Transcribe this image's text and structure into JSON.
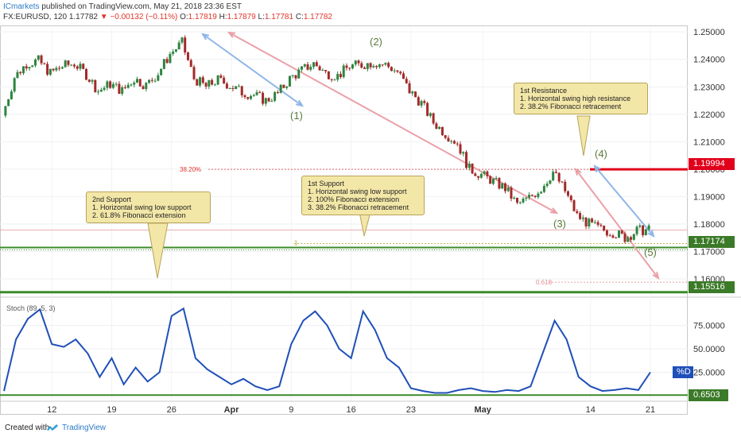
{
  "header": {
    "brand": "ICmarkets",
    "published": " published on TradingView.com, May 21, 2018 23:36 EST",
    "symbol": "FX:EURUSD, 120",
    "last": "1.17782",
    "change": "▼ −0.00132 (−0.11%)",
    "ohlc_o_label": "O:",
    "ohlc_o": "1.17819",
    "ohlc_h_label": "H:",
    "ohlc_h": "1.17879",
    "ohlc_l_label": "L:",
    "ohlc_l": "1.17781",
    "ohlc_c_label": "C:",
    "ohlc_c": "1.17782"
  },
  "footer": {
    "created": "Created with",
    "brand": "TradingView"
  },
  "colors": {
    "up": "#2e8540",
    "down": "#a32a2a",
    "resistance": "#e0001b",
    "support": "#3b8b2a",
    "stoch": "#1f4fb8",
    "arrow_blue": "#8fb6e8",
    "arrow_pink": "#eaa0a8"
  },
  "callouts": {
    "second_support": "2nd Support\n1. Horizontal swing low support\n2. 61.8% Fibonacci extension",
    "first_support": "1st Support\n1. Horizontal swing low support\n2. 100% Fibonacci extension\n3. 38.2% Fibonacci retracement",
    "first_resistance": "1st Resistance\n1. Horizontal swing high resistance\n2. 38.2% Fibonacci retracement"
  },
  "chart_data": [
    {
      "type": "line",
      "title": "FX:EURUSD, 120",
      "y_ticks": [
        "1.25000",
        "1.24000",
        "1.23000",
        "1.22000",
        "1.21000",
        "1.20000",
        "1.19000",
        "1.18000",
        "1.17000",
        "1.16000"
      ],
      "ylim": [
        1.1545,
        1.2515
      ],
      "x_ticks": [
        "12",
        "19",
        "26",
        "Apr",
        "9",
        "16",
        "23",
        "May",
        "14",
        "21"
      ],
      "x": [
        "Mar 6",
        "Mar 7",
        "Mar 8",
        "Mar 9",
        "Mar 12",
        "Mar 13",
        "Mar 14",
        "Mar 15",
        "Mar 16",
        "Mar 19",
        "Mar 20",
        "Mar 21",
        "Mar 22",
        "Mar 23",
        "Mar 26",
        "Mar 27",
        "Mar 28",
        "Mar 29",
        "Mar 30",
        "Apr 2",
        "Apr 3",
        "Apr 4",
        "Apr 5",
        "Apr 6",
        "Apr 9",
        "Apr 10",
        "Apr 11",
        "Apr 12",
        "Apr 13",
        "Apr 16",
        "Apr 17",
        "Apr 18",
        "Apr 19",
        "Apr 20",
        "Apr 23",
        "Apr 24",
        "Apr 25",
        "Apr 26",
        "Apr 27",
        "Apr 30",
        "May 1",
        "May 2",
        "May 3",
        "May 4",
        "May 7",
        "May 8",
        "May 9",
        "May 10",
        "May 11",
        "May 14",
        "May 15",
        "May 16",
        "May 17",
        "May 18",
        "May 21"
      ],
      "series": [
        {
          "name": "",
          "values": [
            1.2195,
            1.2335,
            1.2385,
            1.2395,
            1.235,
            1.2375,
            1.2385,
            1.2345,
            1.2285,
            1.231,
            1.2285,
            1.233,
            1.2305,
            1.235,
            1.242,
            1.246,
            1.233,
            1.23,
            1.2325,
            1.2305,
            1.228,
            1.227,
            1.225,
            1.2275,
            1.233,
            1.236,
            1.2385,
            1.235,
            1.234,
            1.2375,
            1.238,
            1.239,
            1.238,
            1.2355,
            1.2285,
            1.224,
            1.217,
            1.213,
            1.2095,
            1.2,
            1.198,
            1.1955,
            1.193,
            1.187,
            1.1895,
            1.193,
            1.199,
            1.192,
            1.183,
            1.18,
            1.178,
            1.177,
            1.175,
            1.1775,
            1.1778
          ]
        }
      ],
      "wave_labels": [
        "(1)",
        "(2)",
        "(3)",
        "(4)",
        "(5)"
      ],
      "levels": {
        "resistance": {
          "value": 1.19994,
          "label": "1.19994"
        },
        "support1": {
          "value": 1.17174,
          "label": "1.17174"
        },
        "support2": {
          "value": 1.15516,
          "label": "1.15516"
        },
        "current": {
          "value": 1.17782
        }
      },
      "fib_labels": {
        "retrace": "38.20%",
        "ext_100": "1",
        "ext_618": "0.618"
      },
      "ext_618_value": 1.1588
    },
    {
      "type": "line",
      "title": "Stoch (89, 5, 3)",
      "y_ticks": [
        "75.0000",
        "50.0000",
        "25.0000"
      ],
      "ylim": [
        0,
        100
      ],
      "x": [
        "Mar 6",
        "Mar 7",
        "Mar 8",
        "Mar 9",
        "Mar 12",
        "Mar 13",
        "Mar 14",
        "Mar 15",
        "Mar 16",
        "Mar 19",
        "Mar 20",
        "Mar 21",
        "Mar 22",
        "Mar 23",
        "Mar 26",
        "Mar 27",
        "Mar 28",
        "Mar 29",
        "Mar 30",
        "Apr 2",
        "Apr 3",
        "Apr 4",
        "Apr 5",
        "Apr 6",
        "Apr 9",
        "Apr 10",
        "Apr 11",
        "Apr 12",
        "Apr 13",
        "Apr 16",
        "Apr 17",
        "Apr 18",
        "Apr 19",
        "Apr 20",
        "Apr 23",
        "Apr 24",
        "Apr 25",
        "Apr 26",
        "Apr 27",
        "Apr 30",
        "May 1",
        "May 2",
        "May 3",
        "May 4",
        "May 7",
        "May 8",
        "May 9",
        "May 10",
        "May 11",
        "May 14",
        "May 15",
        "May 16",
        "May 17",
        "May 18",
        "May 21"
      ],
      "series": [
        {
          "name": "%D",
          "values": [
            5,
            60,
            82,
            92,
            55,
            52,
            60,
            45,
            20,
            40,
            12,
            30,
            15,
            25,
            85,
            93,
            40,
            28,
            20,
            12,
            18,
            10,
            6,
            10,
            55,
            80,
            90,
            75,
            50,
            40,
            90,
            70,
            40,
            30,
            8,
            5,
            3,
            3,
            6,
            8,
            5,
            4,
            6,
            5,
            10,
            45,
            80,
            60,
            20,
            10,
            5,
            6,
            8,
            6,
            25
          ]
        }
      ],
      "current_label": "%D",
      "level_label": "0.6503",
      "level_value": 0.6503
    }
  ]
}
